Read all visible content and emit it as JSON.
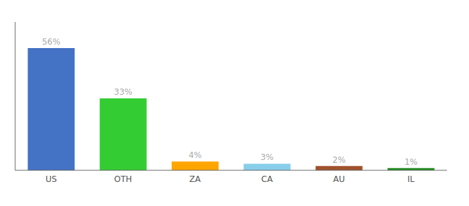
{
  "chart_data": {
    "type": "bar",
    "categories": [
      "US",
      "OTH",
      "ZA",
      "CA",
      "AU",
      "IL"
    ],
    "values": [
      56,
      33,
      4,
      3,
      2,
      1
    ],
    "value_labels": [
      "56%",
      "33%",
      "4%",
      "3%",
      "2%",
      "1%"
    ],
    "data_labels": true,
    "colors": [
      "#4472C4",
      "#33CC33",
      "#FFA500",
      "#87CEEB",
      "#A0522D",
      "#228B22"
    ],
    "ylim": [
      0,
      68
    ],
    "grid": false,
    "tick_labels": "x"
  }
}
